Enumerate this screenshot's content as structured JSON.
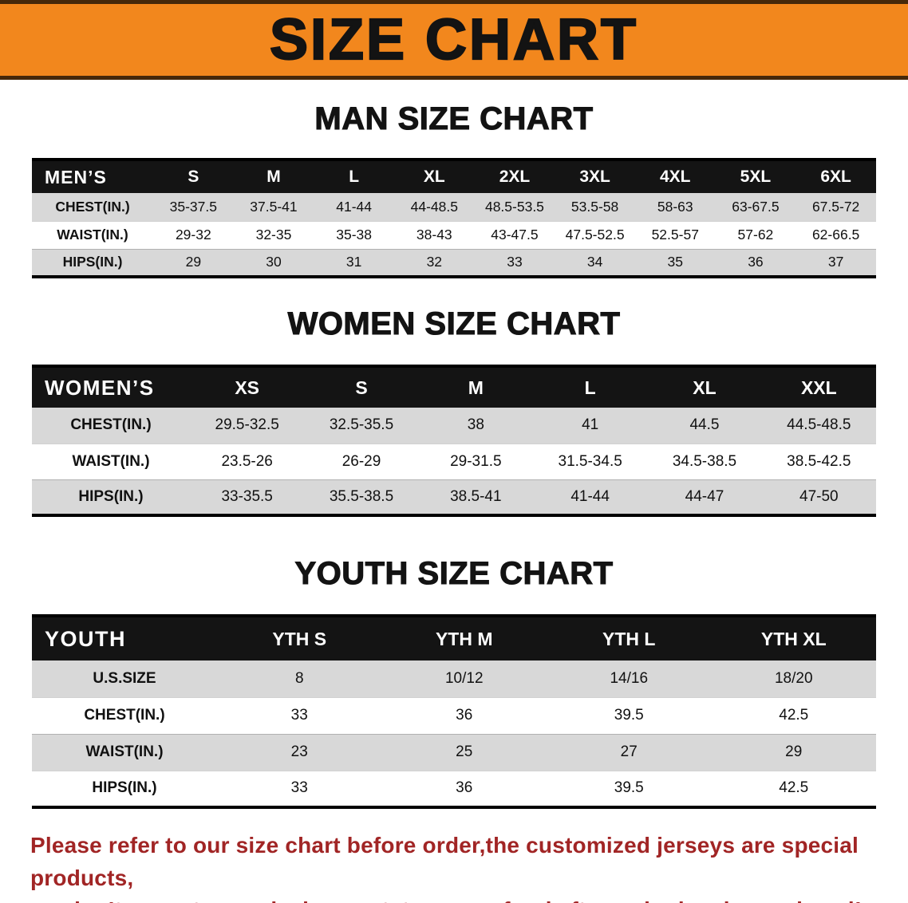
{
  "banner": {
    "title": "SIZE CHART"
  },
  "colors": {
    "banner_bg": "#F2871D",
    "title_text": "#131313",
    "table_header_bg": "#141414",
    "table_header_text": "#FFFFFF",
    "row_gray": "#D8D8D8",
    "row_white": "#FFFFFF",
    "note_red": "#A12525"
  },
  "sections": [
    {
      "heading": "MAN SIZE CHART",
      "table": {
        "label": "MEN’S",
        "columns": [
          "S",
          "M",
          "L",
          "XL",
          "2XL",
          "3XL",
          "4XL",
          "5XL",
          "6XL"
        ],
        "rows": [
          {
            "label": "CHEST(IN.)",
            "values": [
              "35-37.5",
              "37.5-41",
              "41-44",
              "44-48.5",
              "48.5-53.5",
              "53.5-58",
              "58-63",
              "63-67.5",
              "67.5-72"
            ]
          },
          {
            "label": "WAIST(IN.)",
            "values": [
              "29-32",
              "32-35",
              "35-38",
              "38-43",
              "43-47.5",
              "47.5-52.5",
              "52.5-57",
              "57-62",
              "62-66.5"
            ]
          },
          {
            "label": "HIPS(IN.)",
            "values": [
              "29",
              "30",
              "31",
              "32",
              "33",
              "34",
              "35",
              "36",
              "37"
            ]
          }
        ]
      }
    },
    {
      "heading": "WOMEN SIZE CHART",
      "table": {
        "label": "WOMEN’S",
        "columns": [
          "XS",
          "S",
          "M",
          "L",
          "XL",
          "XXL"
        ],
        "rows": [
          {
            "label": "CHEST(IN.)",
            "values": [
              "29.5-32.5",
              "32.5-35.5",
              "38",
              "41",
              "44.5",
              "44.5-48.5"
            ]
          },
          {
            "label": "WAIST(IN.)",
            "values": [
              "23.5-26",
              "26-29",
              "29-31.5",
              "31.5-34.5",
              "34.5-38.5",
              "38.5-42.5"
            ]
          },
          {
            "label": "HIPS(IN.)",
            "values": [
              "33-35.5",
              "35.5-38.5",
              "38.5-41",
              "41-44",
              "44-47",
              "47-50"
            ]
          }
        ]
      }
    },
    {
      "heading": "YOUTH SIZE CHART",
      "table": {
        "label": "YOUTH",
        "columns": [
          "YTH S",
          "YTH M",
          "YTH L",
          "YTH XL"
        ],
        "rows": [
          {
            "label": "U.S.SIZE",
            "values": [
              "8",
              "10/12",
              "14/16",
              "18/20"
            ]
          },
          {
            "label": "CHEST(IN.)",
            "values": [
              "33",
              "36",
              "39.5",
              "42.5"
            ]
          },
          {
            "label": "WAIST(IN.)",
            "values": [
              "23",
              "25",
              "27",
              "29"
            ]
          },
          {
            "label": "HIPS(IN.)",
            "values": [
              "33",
              "36",
              "39.5",
              "42.5"
            ]
          }
        ]
      }
    }
  ],
  "footer": {
    "line1": "Please refer to our size chart before order,the customized jerseys are special products,",
    "line2": "we don’t accept cancel, change, teturn or refund after order has been placed!"
  }
}
